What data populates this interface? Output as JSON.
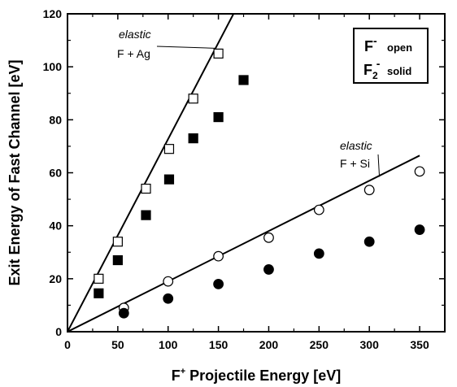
{
  "chart_data": {
    "type": "scatter",
    "xlabel": {
      "prefix": "F",
      "sup": "+",
      "rest": " Projectile Energy [eV]"
    },
    "ylabel": "Exit Energy of Fast Channel [eV]",
    "xlim": [
      0,
      375
    ],
    "ylim": [
      0,
      120
    ],
    "xticks": [
      "0",
      "50",
      "100",
      "150",
      "200",
      "250",
      "300",
      "350"
    ],
    "yticks": [
      "0",
      "20",
      "40",
      "60",
      "80",
      "100",
      "120"
    ],
    "grid": false,
    "legend": {
      "placement": "top-right",
      "row1": {
        "ion": "F",
        "charge": "-",
        "marker": "open"
      },
      "row2": {
        "ion": "F",
        "sub": "2",
        "charge": "-",
        "marker": "solid"
      }
    },
    "lines": [
      {
        "label_italic": "elastic",
        "label": "F + Ag",
        "x": [
          0,
          165
        ],
        "y": [
          0,
          120
        ]
      },
      {
        "label_italic": "elastic",
        "label": "F + Si",
        "x": [
          0,
          350
        ],
        "y": [
          0,
          66.5
        ]
      }
    ],
    "series": [
      {
        "marker": "open-square",
        "x": [
          31,
          50,
          78,
          101,
          125,
          150
        ],
        "y": [
          20,
          34,
          54,
          69,
          88,
          105
        ]
      },
      {
        "marker": "solid-square",
        "x": [
          31,
          50,
          78,
          101,
          125,
          150,
          175
        ],
        "y": [
          14.5,
          27,
          44,
          57.5,
          73,
          81,
          95
        ]
      },
      {
        "marker": "open-circle",
        "x": [
          56,
          100,
          150,
          200,
          250,
          300,
          350
        ],
        "y": [
          9,
          19,
          28.5,
          35.5,
          46,
          53.5,
          60.5
        ]
      },
      {
        "marker": "solid-circle",
        "x": [
          56,
          100,
          150,
          200,
          250,
          300,
          350
        ],
        "y": [
          7,
          12.5,
          18,
          23.5,
          29.5,
          34,
          38.5
        ]
      }
    ]
  }
}
